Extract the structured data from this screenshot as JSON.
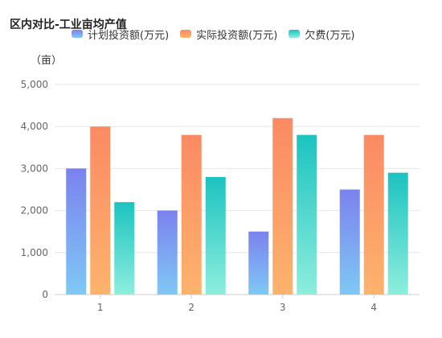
{
  "title": "区内对比-工业亩均产值",
  "unit_label": "（亩）",
  "chart_data": {
    "type": "bar",
    "title": "区内对比-工业亩均产值",
    "ylabel": "（亩）",
    "xlabel": "",
    "categories": [
      "1",
      "2",
      "3",
      "4"
    ],
    "ylim": [
      0,
      5000
    ],
    "yticks": [
      0,
      1000,
      2000,
      3000,
      4000,
      5000
    ],
    "ytick_labels": [
      "0",
      "1,000",
      "2,000",
      "3,000",
      "4,000",
      "5,000"
    ],
    "grid": true,
    "legend_position": "top",
    "series": [
      {
        "name": "计划投资额(万元)",
        "values": [
          3000,
          2000,
          1500,
          2500
        ],
        "color_top": "#7b82ee",
        "color_bottom": "#7fc8f5"
      },
      {
        "name": "实际投资额(万元)",
        "values": [
          4000,
          3800,
          4200,
          3800
        ],
        "color_top": "#fb8a64",
        "color_bottom": "#fdb36c"
      },
      {
        "name": "欠费(万元)",
        "values": [
          2200,
          2800,
          3800,
          2900
        ],
        "color_top": "#1cc3c0",
        "color_bottom": "#8deedd"
      }
    ]
  }
}
